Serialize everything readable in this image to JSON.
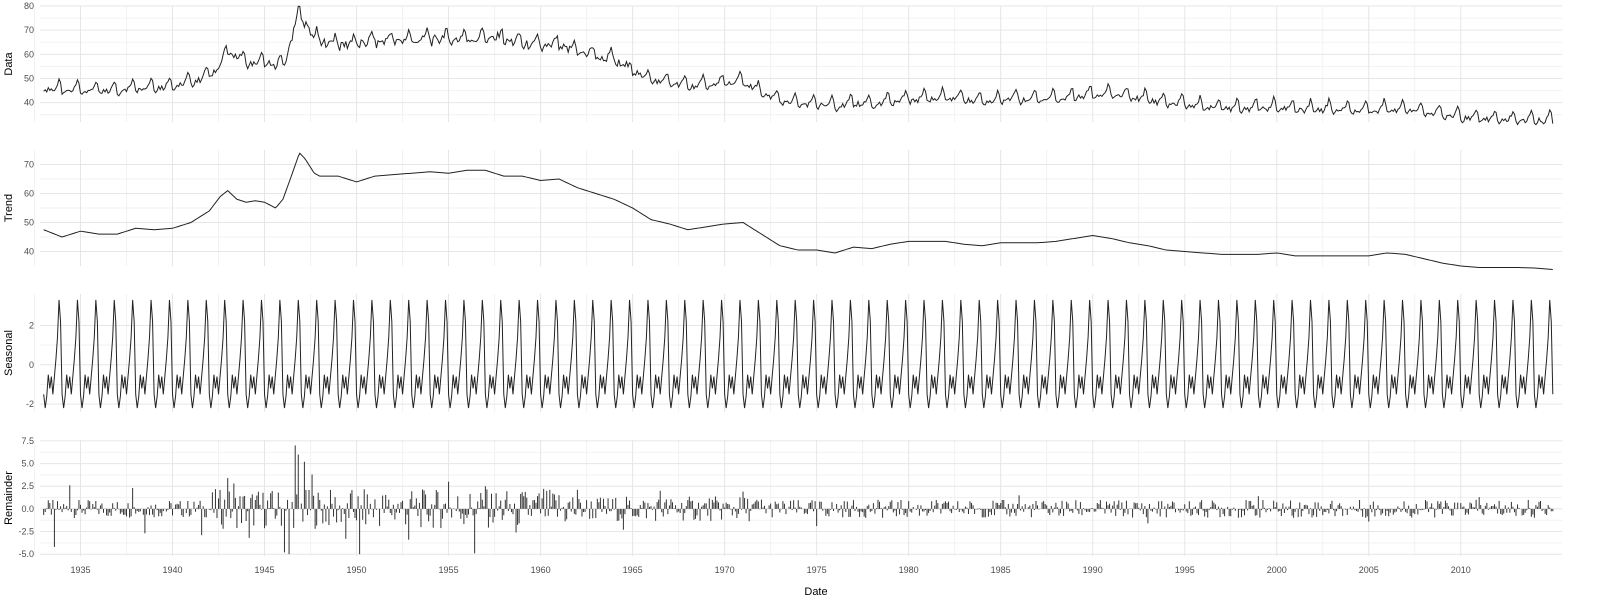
{
  "chart_data": [
    {
      "type": "line",
      "ylabel": "Data",
      "ylim": [
        32,
        80
      ],
      "yticks": [
        40,
        50,
        60,
        70,
        80
      ],
      "xlim": [
        1932.8,
        2015.5
      ],
      "grid": true,
      "anchors": [
        [
          1933.0,
          47
        ],
        [
          1934.0,
          45.5
        ],
        [
          1935.0,
          46
        ],
        [
          1936.0,
          45.5
        ],
        [
          1937.0,
          45.5
        ],
        [
          1938.0,
          47
        ],
        [
          1939.0,
          47
        ],
        [
          1940.0,
          47.5
        ],
        [
          1941.0,
          49
        ],
        [
          1942.0,
          52
        ],
        [
          1942.7,
          57
        ],
        [
          1943.0,
          62
        ],
        [
          1943.5,
          60
        ],
        [
          1944.0,
          57
        ],
        [
          1944.5,
          57
        ],
        [
          1945.0,
          57
        ],
        [
          1945.5,
          56
        ],
        [
          1946.0,
          56
        ],
        [
          1946.3,
          62
        ],
        [
          1946.6,
          72
        ],
        [
          1946.9,
          77
        ],
        [
          1947.2,
          74
        ],
        [
          1947.6,
          68
        ],
        [
          1948.0,
          66
        ],
        [
          1949.0,
          65
        ],
        [
          1950.0,
          65
        ],
        [
          1951.0,
          66
        ],
        [
          1952.0,
          66.5
        ],
        [
          1953.0,
          66.5
        ],
        [
          1954.0,
          67
        ],
        [
          1955.0,
          67
        ],
        [
          1956.0,
          67
        ],
        [
          1957.0,
          67.5
        ],
        [
          1958.0,
          67
        ],
        [
          1959.0,
          65
        ],
        [
          1960.0,
          64
        ],
        [
          1961.0,
          64
        ],
        [
          1962.0,
          62
        ],
        [
          1963.0,
          60
        ],
        [
          1964.0,
          58
        ],
        [
          1965.0,
          54
        ],
        [
          1966.0,
          50
        ],
        [
          1967.0,
          49
        ],
        [
          1968.0,
          47.5
        ],
        [
          1969.0,
          48
        ],
        [
          1970.0,
          48.5
        ],
        [
          1971.0,
          49.5
        ],
        [
          1972.0,
          44.5
        ],
        [
          1973.0,
          41.5
        ],
        [
          1974.0,
          40
        ],
        [
          1975.0,
          40
        ],
        [
          1976.0,
          39
        ],
        [
          1977.0,
          40.5
        ],
        [
          1978.0,
          40
        ],
        [
          1979.0,
          41
        ],
        [
          1980.0,
          42
        ],
        [
          1981.0,
          42.5
        ],
        [
          1982.0,
          42.5
        ],
        [
          1983.0,
          42
        ],
        [
          1984.0,
          41
        ],
        [
          1985.0,
          42
        ],
        [
          1986.0,
          42
        ],
        [
          1987.0,
          42
        ],
        [
          1988.0,
          42
        ],
        [
          1989.0,
          43
        ],
        [
          1990.0,
          44
        ],
        [
          1991.0,
          44
        ],
        [
          1992.0,
          43
        ],
        [
          1993.0,
          42
        ],
        [
          1994.0,
          40.5
        ],
        [
          1995.0,
          40
        ],
        [
          1996.0,
          39
        ],
        [
          1997.0,
          38.5
        ],
        [
          1998.0,
          38.5
        ],
        [
          1999.0,
          38.5
        ],
        [
          2000.0,
          38.5
        ],
        [
          2001.0,
          38
        ],
        [
          2002.0,
          38
        ],
        [
          2003.0,
          38
        ],
        [
          2004.0,
          37.5
        ],
        [
          2005.0,
          37.5
        ],
        [
          2006.0,
          38
        ],
        [
          2007.0,
          38
        ],
        [
          2008.0,
          37
        ],
        [
          2009.0,
          35.5
        ],
        [
          2010.0,
          34.5
        ],
        [
          2011.0,
          34
        ],
        [
          2012.0,
          33.5
        ],
        [
          2013.0,
          33.5
        ],
        [
          2014.0,
          33.5
        ],
        [
          2015.0,
          33
        ]
      ],
      "seasonal_amplitude": 1.0
    },
    {
      "type": "line",
      "ylabel": "Trend",
      "ylim": [
        35,
        75
      ],
      "yticks": [
        40,
        50,
        60,
        70
      ],
      "xlim": [
        1932.8,
        2015.5
      ],
      "grid": true,
      "anchors": [
        [
          1933.0,
          47.5
        ],
        [
          1934.0,
          45
        ],
        [
          1935.0,
          47
        ],
        [
          1936.0,
          46
        ],
        [
          1937.0,
          46
        ],
        [
          1938.0,
          48
        ],
        [
          1939.0,
          47.5
        ],
        [
          1940.0,
          48
        ],
        [
          1941.0,
          50
        ],
        [
          1942.0,
          54
        ],
        [
          1942.6,
          59
        ],
        [
          1943.0,
          61
        ],
        [
          1943.5,
          58
        ],
        [
          1944.0,
          57
        ],
        [
          1944.5,
          57.5
        ],
        [
          1945.0,
          57
        ],
        [
          1945.6,
          55
        ],
        [
          1946.0,
          58
        ],
        [
          1946.4,
          65
        ],
        [
          1946.9,
          74
        ],
        [
          1947.2,
          72
        ],
        [
          1947.7,
          67
        ],
        [
          1948.0,
          66
        ],
        [
          1949.0,
          66
        ],
        [
          1950.0,
          64
        ],
        [
          1951.0,
          66
        ],
        [
          1952.0,
          66.5
        ],
        [
          1953.0,
          67
        ],
        [
          1954.0,
          67.5
        ],
        [
          1955.0,
          67
        ],
        [
          1956.0,
          68
        ],
        [
          1957.0,
          68
        ],
        [
          1958.0,
          66
        ],
        [
          1959.0,
          66
        ],
        [
          1960.0,
          64.5
        ],
        [
          1961.0,
          65
        ],
        [
          1962.0,
          62
        ],
        [
          1963.0,
          60
        ],
        [
          1964.0,
          58
        ],
        [
          1965.0,
          55
        ],
        [
          1966.0,
          51
        ],
        [
          1967.0,
          49.5
        ],
        [
          1968.0,
          47.5
        ],
        [
          1969.0,
          48.5
        ],
        [
          1970.0,
          49.5
        ],
        [
          1971.0,
          50
        ],
        [
          1972.0,
          46
        ],
        [
          1973.0,
          42
        ],
        [
          1974.0,
          40.5
        ],
        [
          1975.0,
          40.5
        ],
        [
          1976.0,
          39.5
        ],
        [
          1977.0,
          41.5
        ],
        [
          1978.0,
          41
        ],
        [
          1979.0,
          42.5
        ],
        [
          1980.0,
          43.5
        ],
        [
          1981.0,
          43.5
        ],
        [
          1982.0,
          43.5
        ],
        [
          1983.0,
          42.5
        ],
        [
          1984.0,
          42
        ],
        [
          1985.0,
          43
        ],
        [
          1986.0,
          43
        ],
        [
          1987.0,
          43
        ],
        [
          1988.0,
          43.5
        ],
        [
          1989.0,
          44.5
        ],
        [
          1990.0,
          45.5
        ],
        [
          1991.0,
          44.5
        ],
        [
          1992.0,
          43
        ],
        [
          1993.0,
          42
        ],
        [
          1994.0,
          40.5
        ],
        [
          1995.0,
          40
        ],
        [
          1996.0,
          39.5
        ],
        [
          1997.0,
          39
        ],
        [
          1998.0,
          39
        ],
        [
          1999.0,
          39
        ],
        [
          2000.0,
          39.5
        ],
        [
          2001.0,
          38.5
        ],
        [
          2002.0,
          38.5
        ],
        [
          2003.0,
          38.5
        ],
        [
          2004.0,
          38.5
        ],
        [
          2005.0,
          38.5
        ],
        [
          2006.0,
          39.5
        ],
        [
          2007.0,
          39
        ],
        [
          2008.0,
          37.5
        ],
        [
          2009.0,
          36
        ],
        [
          2010.0,
          35
        ],
        [
          2011.0,
          34.5
        ],
        [
          2012.0,
          34.5
        ],
        [
          2013.0,
          34.5
        ],
        [
          2014.0,
          34.3
        ],
        [
          2015.0,
          33.8
        ]
      ]
    },
    {
      "type": "line",
      "ylabel": "Seasonal",
      "ylim": [
        -2.4,
        3.6
      ],
      "yticks": [
        -2,
        0,
        2
      ],
      "xlim": [
        1932.8,
        2015.5
      ],
      "grid": true,
      "period_years": 1,
      "cycle": [
        -1.5,
        -2.2,
        -1.6,
        -0.5,
        -1.2,
        -0.6,
        -1.5,
        -0.6,
        0.3,
        1.4,
        3.3,
        2.2
      ],
      "end": 2015.0
    },
    {
      "type": "bar",
      "ylabel": "Remainder",
      "ylim": [
        -5.2,
        7.6
      ],
      "yticks": [
        -5.0,
        -2.5,
        0.0,
        2.5,
        5.0,
        7.5
      ],
      "ytick_labels": [
        "-5.0",
        "-2.5",
        "0.0",
        "2.5",
        "5.0",
        "7.5"
      ],
      "xlim": [
        1932.8,
        2015.5
      ],
      "grid": true,
      "spikes": [
        [
          1933.6,
          -4.2
        ],
        [
          1934.4,
          2.6
        ],
        [
          1937.8,
          2.3
        ],
        [
          1938.5,
          -2.7
        ],
        [
          1941.6,
          -2.9
        ],
        [
          1943.0,
          3.4
        ],
        [
          1943.3,
          2.8
        ],
        [
          1944.2,
          -3.2
        ],
        [
          1946.1,
          -4.8
        ],
        [
          1946.3,
          -5.0
        ],
        [
          1946.7,
          7.0
        ],
        [
          1946.85,
          6.0
        ],
        [
          1947.2,
          5.2
        ],
        [
          1947.6,
          3.8
        ],
        [
          1949.4,
          -3.3
        ],
        [
          1950.2,
          -5.0
        ],
        [
          1952.8,
          -3.4
        ],
        [
          1955.0,
          3.0
        ],
        [
          1956.4,
          -4.9
        ],
        [
          1957.0,
          2.5
        ],
        [
          1958.7,
          -2.6
        ],
        [
          1960.2,
          2.2
        ],
        [
          1962.0,
          2.1
        ],
        [
          1964.5,
          -2.3
        ],
        [
          1966.5,
          2.0
        ],
        [
          1971.0,
          1.9
        ],
        [
          1975.0,
          -1.9
        ],
        [
          1986.0,
          1.5
        ],
        [
          1993.0,
          -1.6
        ],
        [
          1999.0,
          1.4
        ],
        [
          2005.0,
          -1.4
        ],
        [
          2011.0,
          1.3
        ]
      ]
    }
  ],
  "x_axis": {
    "title": "Date",
    "tick_labels": [
      "1935",
      "1940",
      "1945",
      "1950",
      "1955",
      "1960",
      "1965",
      "1970",
      "1975",
      "1980",
      "1985",
      "1990",
      "1995",
      "2000",
      "2005",
      "2010"
    ]
  },
  "colors": {
    "line": "#222222",
    "bar": "#333333",
    "grid_major": "#e6e6e6",
    "grid_minor": "#f2f2f2",
    "tick_text": "#4d4d4d"
  }
}
